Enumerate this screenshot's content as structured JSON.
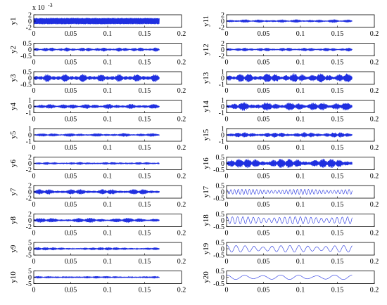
{
  "chart_data": {
    "type": "line",
    "title": "",
    "xlabel": "",
    "x_range": [
      0,
      0.2
    ],
    "x_ticks": [
      "0",
      "0.05",
      "0.1",
      "0.15",
      "0.2"
    ],
    "signal_x_end": 0.17,
    "line_color": "#1f2fe0",
    "grid": false,
    "panels": [
      {
        "name": "y1",
        "ylim": [
          -2,
          2
        ],
        "yticks": [
          "2",
          "0",
          "-2"
        ],
        "exponent": "x 10",
        "exponent_power": "-3",
        "amplitude": 1.0,
        "style": "dense"
      },
      {
        "name": "y2",
        "ylim": [
          -0.5,
          0.5
        ],
        "yticks": [
          "0.5",
          "0",
          "-0.5"
        ],
        "amplitude": 0.17,
        "style": "burst"
      },
      {
        "name": "y3",
        "ylim": [
          -0.5,
          0.5
        ],
        "yticks": [
          "0.5",
          "0",
          "-0.5"
        ],
        "amplitude": 0.32,
        "style": "burst"
      },
      {
        "name": "y4",
        "ylim": [
          -1,
          1
        ],
        "yticks": [
          "1",
          "0",
          "-1"
        ],
        "amplitude": 0.42,
        "style": "burst"
      },
      {
        "name": "y5",
        "ylim": [
          -1,
          1
        ],
        "yticks": [
          "1",
          "0",
          "-1"
        ],
        "amplitude": 0.3,
        "style": "burst"
      },
      {
        "name": "y6",
        "ylim": [
          -2,
          2
        ],
        "yticks": [
          "2",
          "0",
          "-2"
        ],
        "amplitude": 0.45,
        "style": "burst"
      },
      {
        "name": "y7",
        "ylim": [
          -2,
          2
        ],
        "yticks": [
          "2",
          "0",
          "-2"
        ],
        "amplitude": 0.9,
        "style": "burst"
      },
      {
        "name": "y8",
        "ylim": [
          -2,
          2
        ],
        "yticks": [
          "2",
          "0",
          "-2"
        ],
        "amplitude": 0.8,
        "style": "burst"
      },
      {
        "name": "y9",
        "ylim": [
          -5,
          5
        ],
        "yticks": [
          "5",
          "0",
          "-5"
        ],
        "amplitude": 1.3,
        "style": "burst"
      },
      {
        "name": "y10",
        "ylim": [
          -5,
          5
        ],
        "yticks": [
          "5",
          "0",
          "-5"
        ],
        "amplitude": 1.0,
        "style": "burst"
      },
      {
        "name": "y11",
        "ylim": [
          -2,
          2
        ],
        "yticks": [
          "2",
          "0",
          "-2"
        ],
        "amplitude": 0.55,
        "style": "burst"
      },
      {
        "name": "y12",
        "ylim": [
          -2,
          2
        ],
        "yticks": [
          "2",
          "0",
          "-2"
        ],
        "amplitude": 0.6,
        "style": "burst"
      },
      {
        "name": "y13",
        "ylim": [
          -1,
          1
        ],
        "yticks": [
          "1",
          "0",
          "-1"
        ],
        "amplitude": 0.75,
        "style": "burst"
      },
      {
        "name": "y14",
        "ylim": [
          -1,
          1
        ],
        "yticks": [
          "1",
          "0",
          "-1"
        ],
        "amplitude": 0.7,
        "style": "burst"
      },
      {
        "name": "y15",
        "ylim": [
          -1,
          1
        ],
        "yticks": [
          "1",
          "0",
          "-1"
        ],
        "amplitude": 0.45,
        "style": "burst"
      },
      {
        "name": "y16",
        "ylim": [
          -0.5,
          0.5
        ],
        "yticks": [
          "0.5",
          "0",
          "-0.5"
        ],
        "amplitude": 0.4,
        "style": "burst"
      },
      {
        "name": "y17",
        "ylim": [
          -0.5,
          0.5
        ],
        "yticks": [
          "0.5",
          "0",
          "-0.5"
        ],
        "amplitude": 0.2,
        "style": "wave",
        "cycles": 34
      },
      {
        "name": "y18",
        "ylim": [
          -0.5,
          0.5
        ],
        "yticks": [
          "0.5",
          "0",
          "-0.5"
        ],
        "amplitude": 0.28,
        "style": "wave",
        "cycles": 24
      },
      {
        "name": "y19",
        "ylim": [
          -0.5,
          0.5
        ],
        "yticks": [
          "0.5",
          "0",
          "-0.5"
        ],
        "amplitude": 0.26,
        "style": "wave",
        "cycles": 14
      },
      {
        "name": "y20",
        "ylim": [
          -0.5,
          0.5
        ],
        "yticks": [
          "0.5",
          "0",
          "-0.5"
        ],
        "amplitude": 0.18,
        "style": "wave",
        "cycles": 7
      }
    ]
  }
}
